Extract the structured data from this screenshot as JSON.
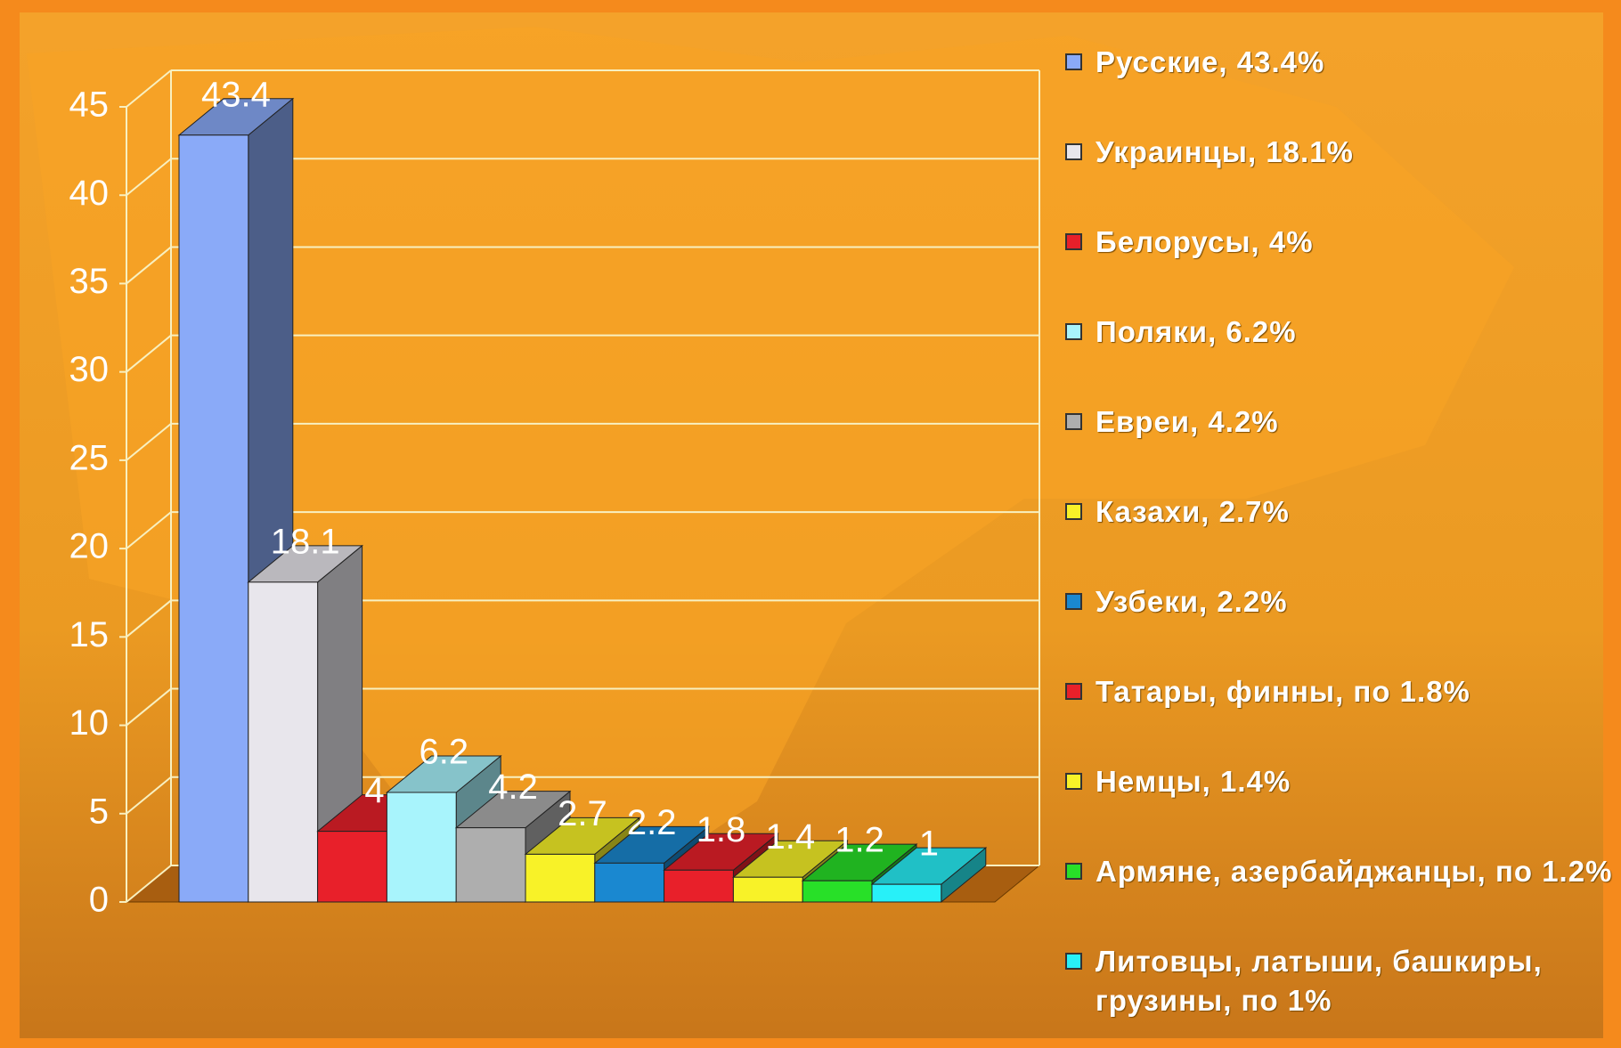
{
  "chart_data": {
    "type": "bar3d",
    "categories": [
      "Русские, 43.4%",
      "Украинцы, 18.1%",
      "Белорусы, 4%",
      "Поляки, 6.2%",
      "Евреи, 4.2%",
      "Казахи, 2.7%",
      "Узбеки, 2.2%",
      "Татары, финны, по 1.8%",
      "Немцы, 1.4%",
      "Армяне, азербайджанцы, по 1.2%",
      "Литовцы, латыши, башкиры, грузины, по 1%"
    ],
    "values": [
      43.4,
      18.1,
      4,
      6.2,
      4.2,
      2.7,
      2.2,
      1.8,
      1.4,
      1.2,
      1
    ],
    "colors": [
      "#8aaaf8",
      "#e8e6ec",
      "#e8202a",
      "#a8f4fc",
      "#aeaeae",
      "#f8f228",
      "#1a88d0",
      "#e8202a",
      "#f8f228",
      "#28e028",
      "#28f0f8"
    ],
    "ylim": [
      0,
      45
    ],
    "yticks": [
      0,
      5,
      10,
      15,
      20,
      25,
      30,
      35,
      40,
      45
    ],
    "grid": true,
    "legend": "right"
  }
}
